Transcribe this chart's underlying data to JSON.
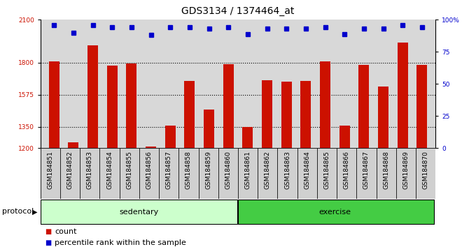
{
  "title": "GDS3134 / 1374464_at",
  "samples": [
    "GSM184851",
    "GSM184852",
    "GSM184853",
    "GSM184854",
    "GSM184855",
    "GSM184856",
    "GSM184857",
    "GSM184858",
    "GSM184859",
    "GSM184860",
    "GSM184861",
    "GSM184862",
    "GSM184863",
    "GSM184864",
    "GSM184865",
    "GSM184866",
    "GSM184867",
    "GSM184868",
    "GSM184869",
    "GSM184870"
  ],
  "bar_values": [
    1810,
    1240,
    1920,
    1780,
    1795,
    1210,
    1360,
    1670,
    1470,
    1790,
    1350,
    1675,
    1665,
    1670,
    1810,
    1360,
    1785,
    1630,
    1940,
    1785
  ],
  "percentile_values": [
    96,
    90,
    96,
    94,
    94,
    88,
    94,
    94,
    93,
    94,
    89,
    93,
    93,
    93,
    94,
    89,
    93,
    93,
    96,
    94
  ],
  "bar_color": "#cc1100",
  "dot_color": "#0000cc",
  "ylim_left": [
    1200,
    2100
  ],
  "ylim_right": [
    0,
    100
  ],
  "yticks_left": [
    1200,
    1350,
    1575,
    1800,
    2100
  ],
  "yticks_right": [
    0,
    25,
    50,
    75,
    100
  ],
  "grid_values": [
    1350,
    1575,
    1800
  ],
  "sedentary_count": 10,
  "exercise_count": 10,
  "sedentary_color": "#ccffcc",
  "exercise_color": "#44cc44",
  "protocol_label": "protocol",
  "sedentary_label": "sedentary",
  "exercise_label": "exercise",
  "legend_count_label": "count",
  "legend_percentile_label": "percentile rank within the sample",
  "title_fontsize": 10,
  "tick_fontsize": 6.5,
  "label_fontsize": 8,
  "bar_width": 0.55,
  "plot_bg_color": "#d8d8d8",
  "xtick_bg_color": "#d0d0d0",
  "right_pct_label": "100%"
}
